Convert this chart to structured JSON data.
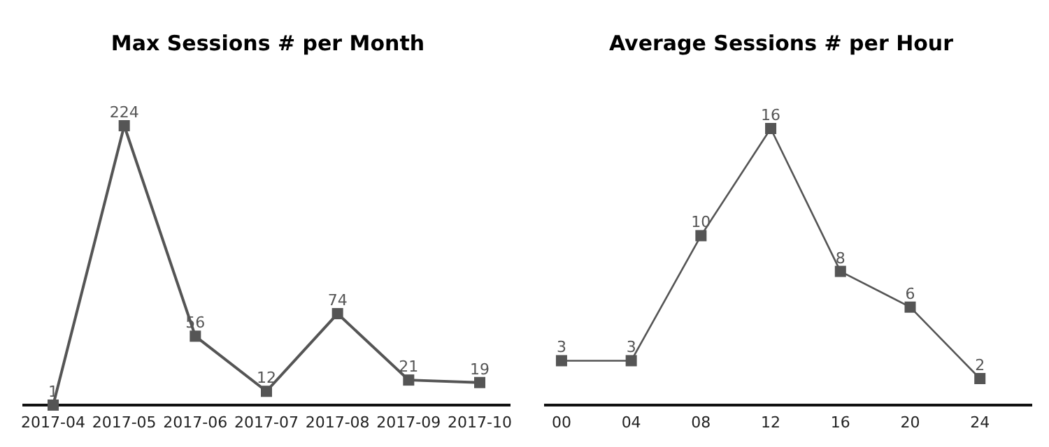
{
  "chart_data": [
    {
      "type": "line",
      "title": "Max Sessions # per Month",
      "categories": [
        "2017-04",
        "2017-05",
        "2017-06",
        "2017-07",
        "2017-08",
        "2017-09",
        "2017-10"
      ],
      "series": [
        {
          "color": "#555555",
          "values": [
            1,
            224,
            56,
            12,
            74,
            21,
            19
          ]
        }
      ],
      "marker": "square",
      "data_labels": true,
      "tick_labels": "x"
    },
    {
      "type": "line",
      "title": "Average Sessions # per Hour",
      "x": [
        0,
        4,
        8,
        12,
        16,
        20,
        24
      ],
      "xlim": [
        -1,
        27
      ],
      "xticks": [
        {
          "value": 0,
          "label": "00"
        },
        {
          "value": 4,
          "label": "04"
        },
        {
          "value": 8,
          "label": "08"
        },
        {
          "value": 12,
          "label": "12"
        },
        {
          "value": 16,
          "label": "16"
        },
        {
          "value": 20,
          "label": "20"
        },
        {
          "value": 24,
          "label": "24"
        }
      ],
      "series": [
        {
          "color": "#555555",
          "values": [
            3,
            3,
            10,
            16,
            8,
            6,
            2
          ]
        }
      ],
      "marker": "square",
      "data_labels": true,
      "tick_labels": "x"
    }
  ]
}
